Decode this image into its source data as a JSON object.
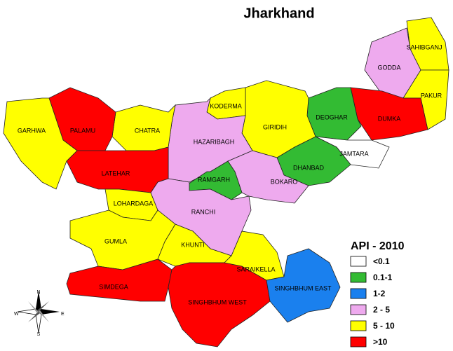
{
  "title": "Jharkhand",
  "districts": [
    {
      "name": "SAHIBGANJ",
      "color": "#ffff00"
    },
    {
      "name": "GODDA",
      "color": "#eeaaee"
    },
    {
      "name": "PAKUR",
      "color": "#ffff00"
    },
    {
      "name": "DUMKA",
      "color": "#ff0000"
    },
    {
      "name": "DEOGHAR",
      "color": "#33bb33"
    },
    {
      "name": "JAMTARA",
      "color": "#ffffff"
    },
    {
      "name": "DHANBAD",
      "color": "#33bb33"
    },
    {
      "name": "GIRIDIH",
      "color": "#ffff00"
    },
    {
      "name": "KODERMA",
      "color": "#ffff00"
    },
    {
      "name": "HAZARIBAGH",
      "color": "#eeaaee"
    },
    {
      "name": "BOKARO",
      "color": "#eeaaee"
    },
    {
      "name": "RAMGARH",
      "color": "#33bb33"
    },
    {
      "name": "CHATRA",
      "color": "#ffff00"
    },
    {
      "name": "PALAMU",
      "color": "#ff0000"
    },
    {
      "name": "GARHWA",
      "color": "#ffff00"
    },
    {
      "name": "LATEHAR",
      "color": "#ff0000"
    },
    {
      "name": "LOHARDAGA",
      "color": "#ffff00"
    },
    {
      "name": "RANCHI",
      "color": "#eeaaee"
    },
    {
      "name": "GUMLA",
      "color": "#ffff00"
    },
    {
      "name": "KHUNTI",
      "color": "#ffff00"
    },
    {
      "name": "SIMDEGA",
      "color": "#ff0000"
    },
    {
      "name": "SINGHBHUM WEST",
      "color": "#ff0000"
    },
    {
      "name": "SARAIKELLA",
      "color": "#ffff00"
    },
    {
      "name": "SINGHBHUM EAST",
      "color": "#1a80ee"
    }
  ],
  "legend": {
    "title": "API - 2010",
    "items": [
      {
        "label": "<0.1",
        "color": "#ffffff"
      },
      {
        "label": "0.1-1",
        "color": "#33bb33"
      },
      {
        "label": "1-2",
        "color": "#1a80ee"
      },
      {
        "label": "2 - 5",
        "color": "#eeaaee"
      },
      {
        "label": "5 - 10",
        "color": "#ffff00"
      },
      {
        "label": ">10",
        "color": "#ff0000"
      }
    ]
  },
  "compass": {
    "north": "N",
    "south": "S",
    "east": "E",
    "west": "W"
  }
}
